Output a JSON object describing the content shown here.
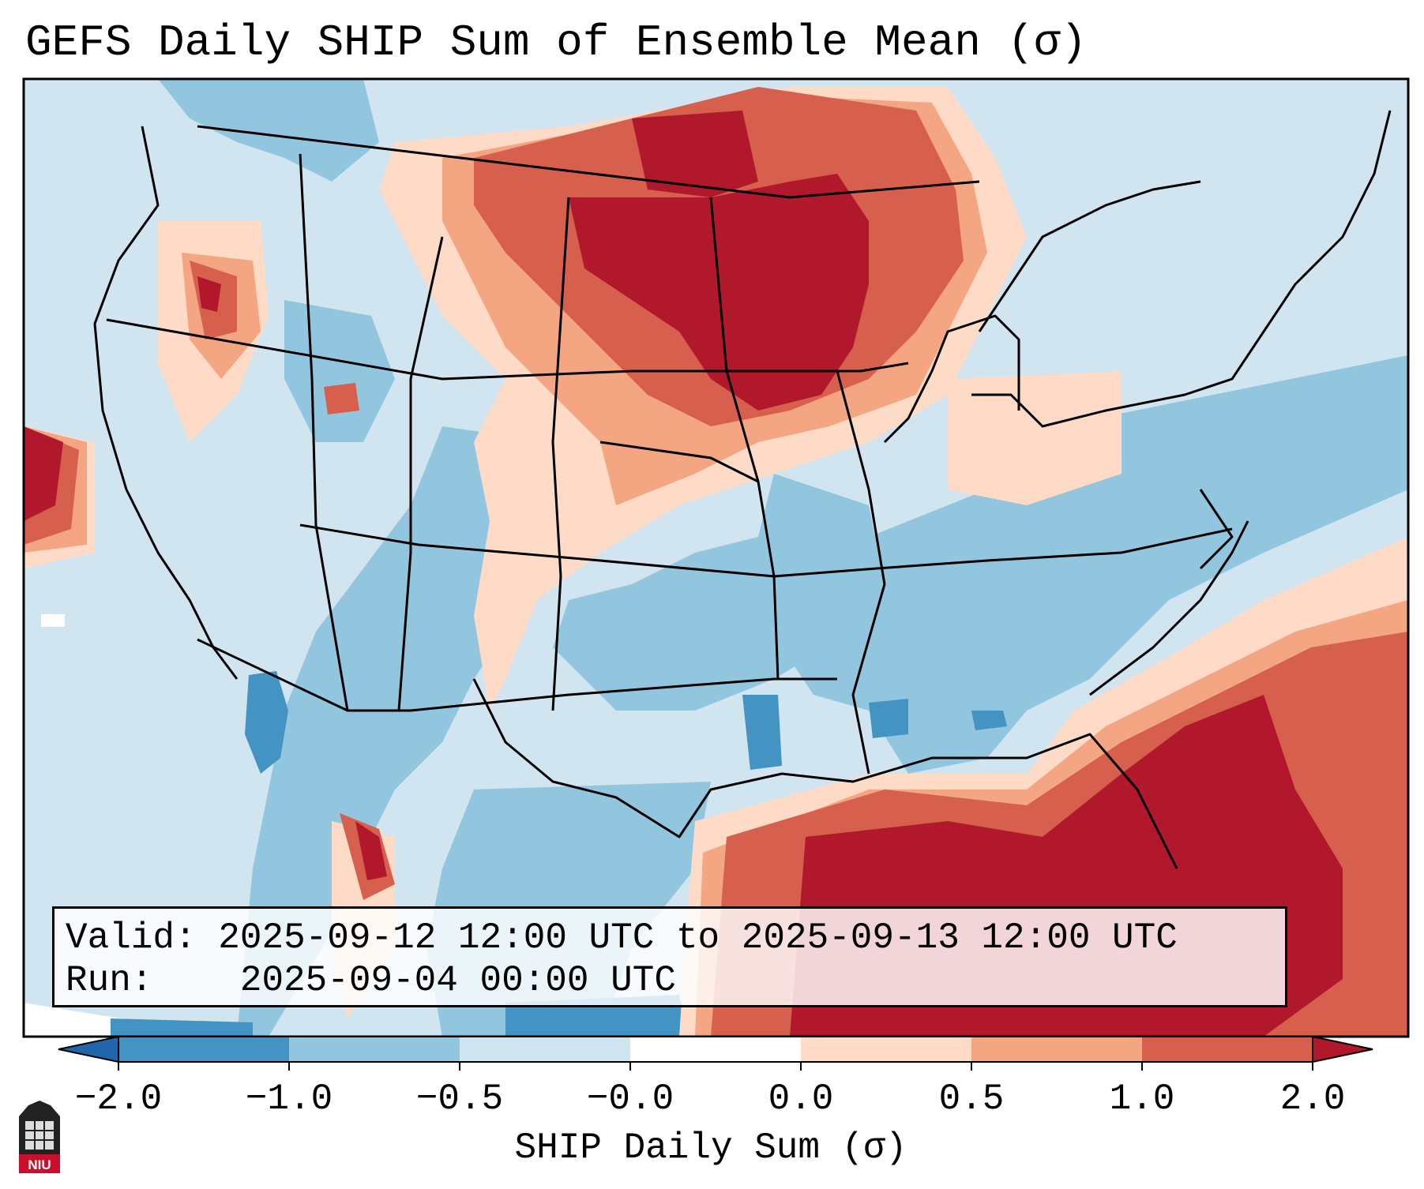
{
  "title": "GEFS Daily SHIP Sum of Ensemble Mean (σ)",
  "valid_label": "Valid:",
  "valid_value": "2025-09-12 12:00 UTC to 2025-09-13 12:00 UTC",
  "run_label": "Run:",
  "run_value": "2025-09-04 00:00 UTC",
  "colorbar": {
    "label": "SHIP Daily Sum (σ)",
    "ticks": [
      "−2.0",
      "−1.0",
      "−0.5",
      "−0.0",
      "0.0",
      "0.5",
      "1.0",
      "2.0"
    ],
    "colors": [
      "#4393c3",
      "#92c5de",
      "#d1e5f0",
      "#fddbc7",
      "#f4a582",
      "#d6604d",
      "#b2182b"
    ],
    "extend_low_color": "#2166ac",
    "extend_high_color": "#b2182b"
  },
  "logo": {
    "text": "NIU",
    "color": "#c8102e"
  },
  "colors": {
    "strong_neg": "#4393c3",
    "neg": "#92c5de",
    "weak_neg": "#d1e5f0",
    "weak_pos": "#fddbc7",
    "pos": "#f4a582",
    "mid_pos": "#d6604d",
    "strong_pos": "#b2182b"
  }
}
